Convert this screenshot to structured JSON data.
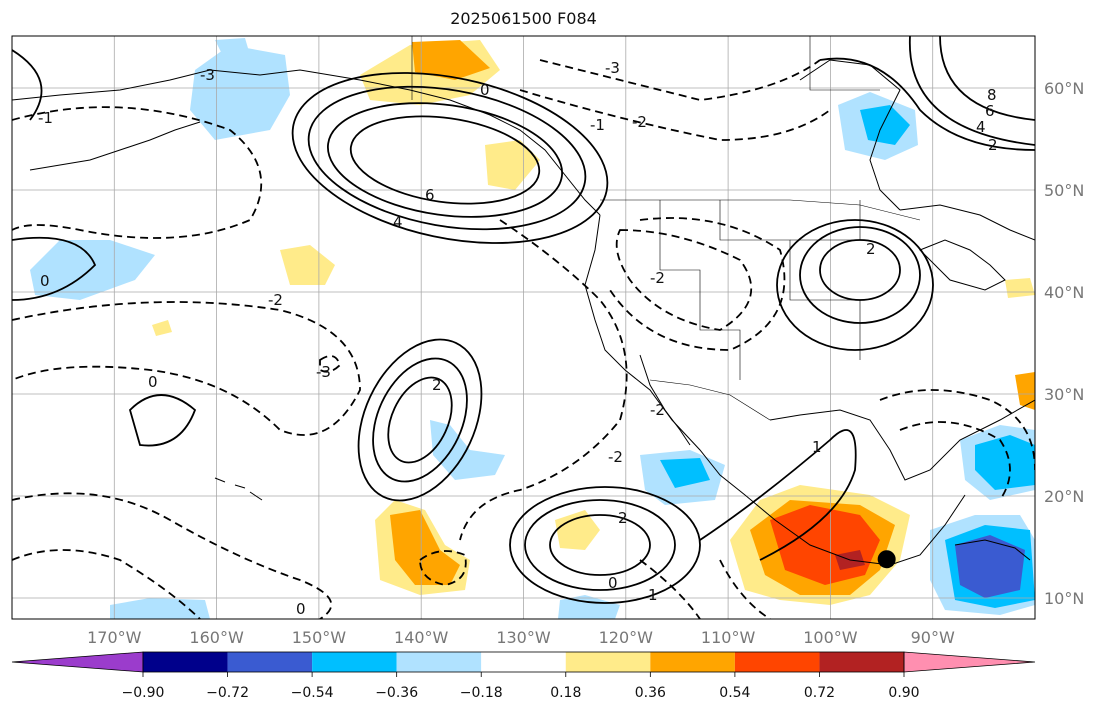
{
  "title": "2025061500 F084",
  "map": {
    "lon_ticks": [
      {
        "value": -170,
        "label": "170°W"
      },
      {
        "value": -160,
        "label": "160°W"
      },
      {
        "value": -150,
        "label": "150°W"
      },
      {
        "value": -140,
        "label": "140°W"
      },
      {
        "value": -130,
        "label": "130°W"
      },
      {
        "value": -120,
        "label": "120°W"
      },
      {
        "value": -110,
        "label": "110°W"
      },
      {
        "value": -100,
        "label": "100°W"
      },
      {
        "value": -90,
        "label": "90°W"
      }
    ],
    "lat_ticks": [
      {
        "value": 60,
        "label": "60°N"
      },
      {
        "value": 50,
        "label": "50°N"
      },
      {
        "value": 40,
        "label": "40°N"
      },
      {
        "value": 30,
        "label": "30°N"
      },
      {
        "value": 20,
        "label": "20°N"
      },
      {
        "value": 10,
        "label": "10°N"
      }
    ],
    "contour_labels": [
      "-3",
      "-2",
      "-1",
      "0",
      "1",
      "2",
      "4",
      "6",
      "8"
    ],
    "marker": {
      "name": "point-marker",
      "lon": -94.5,
      "lat": 13.8
    }
  },
  "colorbar": {
    "colors": [
      "#9b3ccc",
      "#00008b",
      "#3a5bd1",
      "#00bfff",
      "#b0e2ff",
      "#ffffff",
      "#ffeb8a",
      "#ffa500",
      "#ff4500",
      "#b22222",
      "#ff8fb0"
    ],
    "tick_labels": [
      "−0.90",
      "−0.72",
      "−0.54",
      "−0.36",
      "−0.18",
      "0.18",
      "0.36",
      "0.54",
      "0.72",
      "0.90"
    ]
  }
}
